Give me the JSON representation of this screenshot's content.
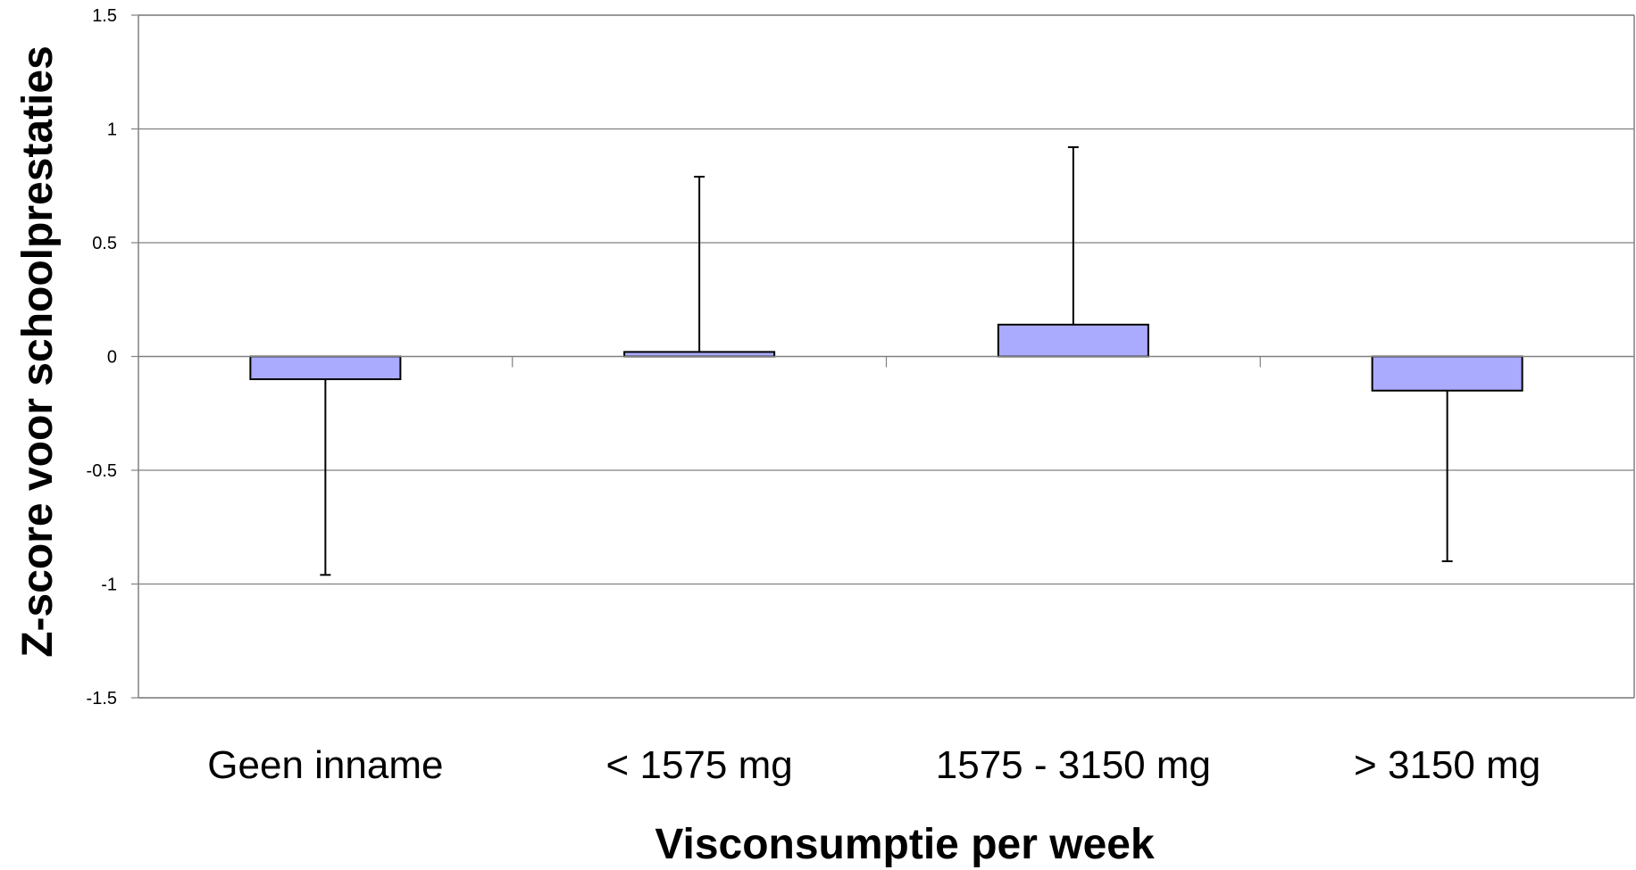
{
  "chart_data": {
    "type": "bar",
    "title": "",
    "xlabel": "Visconsumptie per week",
    "ylabel": "Z-score voor schoolprestaties",
    "categories": [
      "Geen inname",
      "< 1575 mg",
      "1575 - 3150 mg",
      "> 3150 mg"
    ],
    "values": [
      -0.1,
      0.02,
      0.14,
      -0.15
    ],
    "error_bars": [
      {
        "direction": "down",
        "end": -0.96
      },
      {
        "direction": "up",
        "end": 0.79
      },
      {
        "direction": "up",
        "end": 0.92
      },
      {
        "direction": "down",
        "end": -0.9
      }
    ],
    "yticks": [
      "1.5",
      "1",
      "0.5",
      "0",
      "-0.5",
      "-1",
      "-1.5"
    ],
    "ylim": [
      -1.5,
      1.5
    ],
    "grid": true,
    "legend": "none",
    "bar_color": "#aaaaff",
    "bar_stroke": "#000000"
  }
}
